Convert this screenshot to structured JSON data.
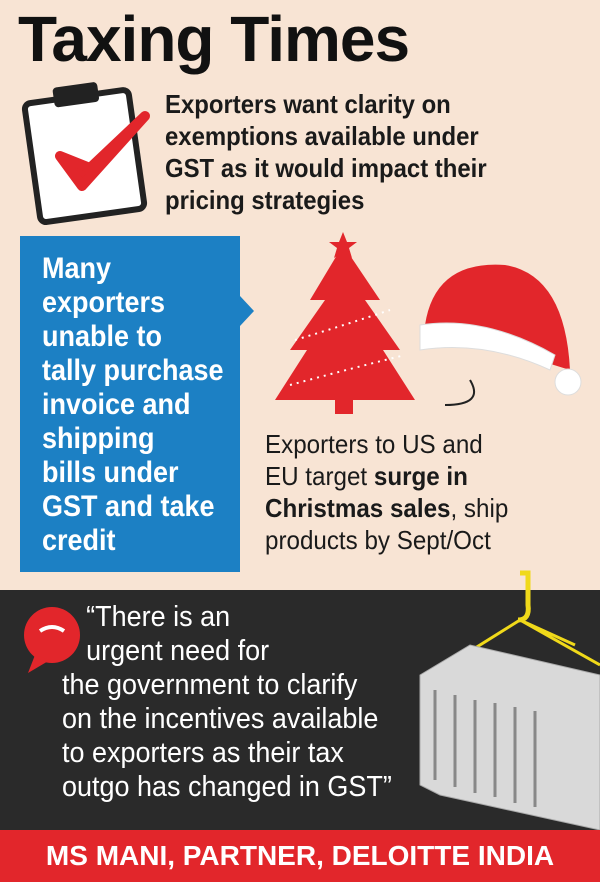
{
  "header": {
    "title": "Taxing Times"
  },
  "note": {
    "lines": [
      "Exporters want clarity on",
      "exemptions available under",
      "GST as it would impact their",
      "pricing strategies"
    ]
  },
  "blue_box": {
    "lines": [
      "Many",
      "exporters",
      "unable to",
      "tally purchase",
      "invoice and",
      "shipping",
      "bills under",
      "GST and take",
      "credit"
    ]
  },
  "christmas": {
    "lines": [
      [
        {
          "text": "Exporters to US and"
        }
      ],
      [
        {
          "text": "EU target "
        },
        {
          "text": "surge in",
          "bold": true
        }
      ],
      [
        {
          "text": "Christmas sales",
          "bold": true
        },
        {
          "text": ", ship"
        }
      ],
      [
        {
          "text": "products by Sept/Oct"
        }
      ]
    ]
  },
  "quote": {
    "lines": [
      "“There is an",
      "urgent need for",
      "the government to clarify",
      "on the incentives available",
      "to exporters as their tax",
      "outgo has changed in GST”"
    ]
  },
  "attribution": "MS MANI, PARTNER, DELOITTE INDIA"
}
